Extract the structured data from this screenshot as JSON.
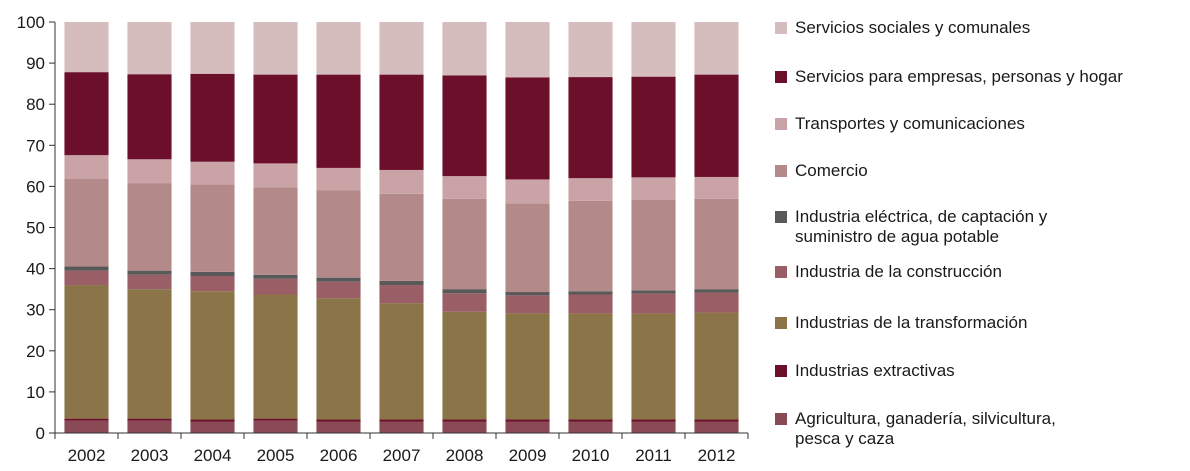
{
  "chart_data": {
    "type": "bar",
    "stacked": true,
    "categories": [
      "2002",
      "2003",
      "2004",
      "2005",
      "2006",
      "2007",
      "2008",
      "2009",
      "2010",
      "2011",
      "2012"
    ],
    "ylim": [
      0,
      100
    ],
    "yticks": [
      0,
      10,
      20,
      30,
      40,
      50,
      60,
      70,
      80,
      90,
      100
    ],
    "legend_position": "right",
    "grid": false,
    "series": [
      {
        "name": "Agricultura, ganadería, silvicultura, pesca y caza",
        "color": "#8a4a55",
        "values": [
          3.0,
          3.0,
          2.8,
          3.0,
          2.8,
          2.8,
          2.8,
          2.8,
          2.8,
          2.8,
          2.8
        ]
      },
      {
        "name": "Industrias extractivas",
        "color": "#6b0f2a",
        "values": [
          0.5,
          0.5,
          0.5,
          0.5,
          0.5,
          0.5,
          0.5,
          0.5,
          0.5,
          0.5,
          0.5
        ]
      },
      {
        "name": "Industrias de la transformación",
        "color": "#8a7448",
        "values": [
          32.5,
          31.5,
          31.2,
          30.2,
          29.5,
          28.3,
          26.2,
          25.8,
          25.8,
          25.8,
          26.0
        ]
      },
      {
        "name": "Industria de la construcción",
        "color": "#9a5f66",
        "values": [
          3.5,
          3.5,
          3.7,
          3.8,
          4.0,
          4.4,
          4.5,
          4.4,
          4.6,
          4.8,
          4.9
        ]
      },
      {
        "name": "Industria eléctrica, de captación y suministro de agua potable",
        "color": "#595959",
        "values": [
          1.0,
          1.0,
          1.0,
          1.0,
          1.0,
          1.0,
          1.0,
          0.8,
          0.8,
          0.8,
          0.8
        ]
      },
      {
        "name": "Comercio",
        "color": "#b38a89",
        "values": [
          21.3,
          21.3,
          21.3,
          21.3,
          21.2,
          21.2,
          22.0,
          21.6,
          22.0,
          22.0,
          22.0
        ]
      },
      {
        "name": "Transportes y comunicaciones",
        "color": "#caa3a7",
        "values": [
          5.8,
          5.8,
          5.5,
          5.8,
          5.5,
          5.8,
          5.5,
          5.8,
          5.5,
          5.5,
          5.3
        ]
      },
      {
        "name": "Servicios para empresas, personas y hogar",
        "color": "#6b0f2a",
        "values": [
          20.2,
          20.7,
          21.4,
          21.6,
          22.7,
          23.2,
          24.5,
          24.8,
          24.6,
          24.5,
          24.9
        ]
      },
      {
        "name": "Servicios sociales y comunales",
        "color": "#d5bcbd",
        "values": [
          12.2,
          12.7,
          12.6,
          12.8,
          12.8,
          12.8,
          13.0,
          13.5,
          13.4,
          13.3,
          12.8
        ]
      }
    ]
  }
}
